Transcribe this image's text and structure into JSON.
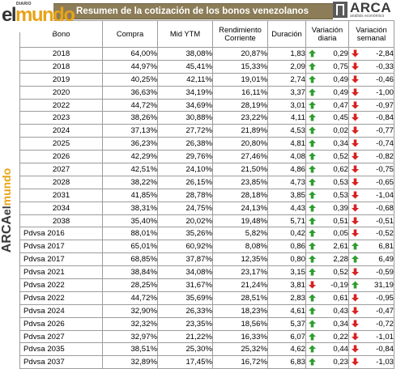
{
  "header": {
    "title": "Resumen de la cotización de los bonos venezolanos",
    "logo_left_small": "DIARIO",
    "logo_left_el": "el",
    "logo_left_mundo": "mundo",
    "logo_right_name": "ARCA",
    "logo_right_sub": "análisis económico"
  },
  "side_logo": {
    "arca": "ARCA",
    "el": "el",
    "mundo": "mundo"
  },
  "columns": [
    "Bono",
    "Compra",
    "Mid YTM",
    "Rendimiento Corriente",
    "Duración",
    "Variación diaria",
    "Variación semanal"
  ],
  "colors": {
    "up_arrow": "#2e9e2e",
    "down_arrow": "#d92020",
    "title_bar": "#8c7d58",
    "brand_yellow": "#e8a317"
  },
  "rows": [
    {
      "bono": "2018",
      "compra": "64,00%",
      "mid": "38,08%",
      "rend": "20,87%",
      "dur": "1,83",
      "vd_dir": "up",
      "vd": "0,29",
      "vs_dir": "down",
      "vs": "-2,84"
    },
    {
      "bono": "2018",
      "compra": "44,97%",
      "mid": "45,41%",
      "rend": "15,33%",
      "dur": "2,09",
      "vd_dir": "up",
      "vd": "0,75",
      "vs_dir": "down",
      "vs": "-0,33"
    },
    {
      "bono": "2019",
      "compra": "40,25%",
      "mid": "42,11%",
      "rend": "19,01%",
      "dur": "2,74",
      "vd_dir": "up",
      "vd": "0,49",
      "vs_dir": "down",
      "vs": "-0,46"
    },
    {
      "bono": "2020",
      "compra": "36,63%",
      "mid": "34,19%",
      "rend": "16,11%",
      "dur": "3,37",
      "vd_dir": "up",
      "vd": "0,49",
      "vs_dir": "down",
      "vs": "-1,00"
    },
    {
      "bono": "2022",
      "compra": "44,72%",
      "mid": "34,69%",
      "rend": "28,19%",
      "dur": "3,01",
      "vd_dir": "up",
      "vd": "0,47",
      "vs_dir": "down",
      "vs": "-0,97"
    },
    {
      "bono": "2023",
      "compra": "38,26%",
      "mid": "30,88%",
      "rend": "23,22%",
      "dur": "4,11",
      "vd_dir": "up",
      "vd": "0,45",
      "vs_dir": "down",
      "vs": "-0,84"
    },
    {
      "bono": "2024",
      "compra": "37,13%",
      "mid": "27,72%",
      "rend": "21,89%",
      "dur": "4,53",
      "vd_dir": "up",
      "vd": "0,02",
      "vs_dir": "down",
      "vs": "-0,77"
    },
    {
      "bono": "2025",
      "compra": "36,23%",
      "mid": "26,38%",
      "rend": "20,80%",
      "dur": "4,81",
      "vd_dir": "up",
      "vd": "0,34",
      "vs_dir": "down",
      "vs": "-0,74"
    },
    {
      "bono": "2026",
      "compra": "42,29%",
      "mid": "29,76%",
      "rend": "27,46%",
      "dur": "4,08",
      "vd_dir": "up",
      "vd": "0,52",
      "vs_dir": "down",
      "vs": "-0,82"
    },
    {
      "bono": "2027",
      "compra": "42,51%",
      "mid": "24,10%",
      "rend": "21,50%",
      "dur": "4,86",
      "vd_dir": "up",
      "vd": "0,62",
      "vs_dir": "down",
      "vs": "-0,75"
    },
    {
      "bono": "2028",
      "compra": "38,22%",
      "mid": "26,15%",
      "rend": "23,85%",
      "dur": "4,73",
      "vd_dir": "up",
      "vd": "0,53",
      "vs_dir": "down",
      "vs": "-0,65"
    },
    {
      "bono": "2031",
      "compra": "41,85%",
      "mid": "28,78%",
      "rend": "28,18%",
      "dur": "3,85",
      "vd_dir": "up",
      "vd": "0,53",
      "vs_dir": "down",
      "vs": "-1,04"
    },
    {
      "bono": "2034",
      "compra": "38,31%",
      "mid": "24,75%",
      "rend": "24,13%",
      "dur": "4,43",
      "vd_dir": "up",
      "vd": "0,39",
      "vs_dir": "down",
      "vs": "-0,68"
    },
    {
      "bono": "2038",
      "compra": "35,40%",
      "mid": "20,02%",
      "rend": "19,48%",
      "dur": "5,71",
      "vd_dir": "up",
      "vd": "0,51",
      "vs_dir": "down",
      "vs": "-0,51"
    },
    {
      "bono": "Pdvsa 2016",
      "compra": "88,01%",
      "mid": "35,26%",
      "rend": "5,82%",
      "dur": "0,42",
      "vd_dir": "up",
      "vd": "0,05",
      "vs_dir": "down",
      "vs": "-0,52"
    },
    {
      "bono": "Pdvsa 2017",
      "compra": "65,01%",
      "mid": "60,92%",
      "rend": "8,08%",
      "dur": "0,86",
      "vd_dir": "up",
      "vd": "2,61",
      "vs_dir": "up",
      "vs": "6,81"
    },
    {
      "bono": "Pdvsa 2017",
      "compra": "68,85%",
      "mid": "37,87%",
      "rend": "12,35%",
      "dur": "0,80",
      "vd_dir": "up",
      "vd": "2,28",
      "vs_dir": "up",
      "vs": "6,49"
    },
    {
      "bono": "Pdvsa 2021",
      "compra": "38,84%",
      "mid": "34,08%",
      "rend": "23,17%",
      "dur": "3,15",
      "vd_dir": "up",
      "vd": "0,52",
      "vs_dir": "down",
      "vs": "-0,59"
    },
    {
      "bono": "Pdvsa 2022",
      "compra": "28,25%",
      "mid": "31,67%",
      "rend": "21,24%",
      "dur": "3,81",
      "vd_dir": "down",
      "vd": "-0,19",
      "vs_dir": "up",
      "vs": "31,19"
    },
    {
      "bono": "Pdvsa 2022",
      "compra": "44,72%",
      "mid": "35,69%",
      "rend": "28,51%",
      "dur": "2,83",
      "vd_dir": "up",
      "vd": "0,61",
      "vs_dir": "down",
      "vs": "-0,95"
    },
    {
      "bono": "Pdvsa 2024",
      "compra": "32,90%",
      "mid": "26,33%",
      "rend": "18,23%",
      "dur": "4,61",
      "vd_dir": "up",
      "vd": "0,43",
      "vs_dir": "down",
      "vs": "-0,47"
    },
    {
      "bono": "Pdvsa 2026",
      "compra": "32,32%",
      "mid": "23,35%",
      "rend": "18,56%",
      "dur": "5,37",
      "vd_dir": "up",
      "vd": "0,34",
      "vs_dir": "down",
      "vs": "-0,72"
    },
    {
      "bono": "Pdvsa 2027",
      "compra": "32,97%",
      "mid": "21,22%",
      "rend": "16,33%",
      "dur": "6,07",
      "vd_dir": "up",
      "vd": "0,22",
      "vs_dir": "down",
      "vs": "-1,01"
    },
    {
      "bono": "Pdvsa 2035",
      "compra": "38,51%",
      "mid": "25,30%",
      "rend": "25,32%",
      "dur": "4,62",
      "vd_dir": "up",
      "vd": "0,44",
      "vs_dir": "down",
      "vs": "-0,84"
    },
    {
      "bono": "Pdvsa 2037",
      "compra": "32,89%",
      "mid": "17,45%",
      "rend": "16,72%",
      "dur": "6,83",
      "vd_dir": "up",
      "vd": "0,23",
      "vs_dir": "down",
      "vs": "-1,03"
    }
  ]
}
